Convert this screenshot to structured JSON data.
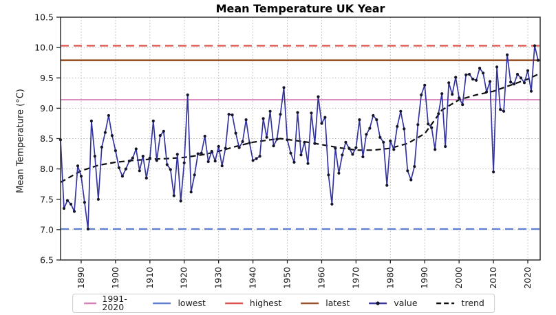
{
  "chart_data": {
    "type": "line",
    "title": "Mean Temperature UK Year",
    "ylabel": "Mean Temperature (°C)",
    "xlabel": "",
    "xlim": [
      1884,
      2023.6
    ],
    "ylim": [
      6.5,
      10.5
    ],
    "x_ticks": [
      1890,
      1900,
      1910,
      1920,
      1930,
      1940,
      1950,
      1960,
      1970,
      1980,
      1990,
      2000,
      2010,
      2020
    ],
    "y_ticks": [
      6.5,
      7.0,
      7.5,
      8.0,
      8.5,
      9.0,
      9.5,
      10.0,
      10.5
    ],
    "grid": true,
    "legend_position": "bottom",
    "value_series": {
      "name": "value",
      "color": "#34349E",
      "marker_color": "#15152A",
      "x_start": 1884,
      "x_step": 1,
      "values": [
        8.48,
        7.35,
        7.48,
        7.42,
        7.3,
        8.05,
        7.88,
        7.45,
        7.01,
        8.79,
        8.21,
        7.5,
        8.36,
        8.6,
        8.88,
        8.55,
        8.3,
        8.02,
        7.88,
        8.0,
        8.13,
        8.18,
        8.33,
        7.97,
        8.21,
        7.85,
        8.18,
        8.79,
        8.14,
        8.55,
        8.62,
        8.07,
        7.99,
        7.56,
        8.24,
        7.47,
        8.1,
        9.22,
        7.62,
        7.9,
        8.25,
        8.26,
        8.54,
        8.12,
        8.29,
        8.13,
        8.37,
        8.05,
        8.34,
        8.9,
        8.89,
        8.59,
        8.35,
        8.45,
        8.81,
        8.43,
        8.14,
        8.17,
        8.21,
        8.83,
        8.52,
        8.95,
        8.38,
        8.49,
        8.9,
        9.34,
        8.48,
        8.26,
        8.11,
        8.93,
        8.23,
        8.44,
        8.09,
        8.92,
        8.42,
        9.19,
        8.75,
        8.85,
        7.9,
        7.42,
        8.34,
        7.93,
        8.23,
        8.44,
        8.34,
        8.24,
        8.35,
        8.81,
        8.2,
        8.57,
        8.67,
        8.88,
        8.81,
        8.52,
        8.44,
        7.73,
        8.46,
        8.32,
        8.7,
        8.95,
        8.66,
        7.97,
        7.82,
        8.04,
        8.73,
        9.22,
        9.38,
        8.74,
        8.68,
        8.32,
        8.91,
        9.24,
        8.37,
        9.42,
        9.23,
        9.51,
        9.17,
        9.06,
        9.55,
        9.56,
        9.48,
        9.46,
        9.66,
        9.58,
        9.27,
        9.44,
        7.95,
        9.68,
        8.98,
        8.95,
        9.88,
        9.43,
        9.4,
        9.56,
        9.5,
        9.42,
        9.62,
        9.28,
        10.03,
        9.79
      ]
    },
    "trend_series": {
      "name": "trend",
      "color": "#0D0D0D",
      "style": "dashed",
      "years": [
        1884,
        1890,
        1895,
        1900,
        1905,
        1910,
        1915,
        1920,
        1925,
        1930,
        1935,
        1940,
        1945,
        1948,
        1952,
        1956,
        1960,
        1965,
        1970,
        1975,
        1980,
        1985,
        1990,
        1995,
        2000,
        2005,
        2010,
        2015,
        2020,
        2023
      ],
      "values": [
        7.78,
        7.97,
        8.06,
        8.11,
        8.14,
        8.16,
        8.17,
        8.19,
        8.23,
        8.29,
        8.37,
        8.44,
        8.48,
        8.5,
        8.47,
        8.44,
        8.4,
        8.35,
        8.31,
        8.31,
        8.34,
        8.42,
        8.58,
        8.97,
        9.14,
        9.22,
        9.28,
        9.38,
        9.48,
        9.56
      ]
    },
    "reference_lines": [
      {
        "name": "1991-2020",
        "value": 9.14,
        "color": "#D87EB8",
        "style": "solid",
        "width": 1.8
      },
      {
        "name": "lowest",
        "value": 7.01,
        "color": "#5E7FD0",
        "style": "dashed",
        "width": 2.2
      },
      {
        "name": "highest",
        "value": 10.03,
        "color": "#E0504A",
        "style": "dashed",
        "width": 2.2
      },
      {
        "name": "latest",
        "value": 9.79,
        "color": "#9A5127",
        "style": "solid",
        "width": 2.6
      }
    ],
    "legend": [
      {
        "label": "1991-2020",
        "color": "#D87EB8",
        "dash": false,
        "marker": false
      },
      {
        "label": "lowest",
        "color": "#5E7FD0",
        "dash": false,
        "marker": false
      },
      {
        "label": "highest",
        "color": "#E0504A",
        "dash": false,
        "marker": false
      },
      {
        "label": "latest",
        "color": "#9A5127",
        "dash": false,
        "marker": false
      },
      {
        "label": "value",
        "color": "#34349E",
        "dash": false,
        "marker": true
      },
      {
        "label": "trend",
        "color": "#0D0D0D",
        "dash": true,
        "marker": false
      }
    ]
  }
}
